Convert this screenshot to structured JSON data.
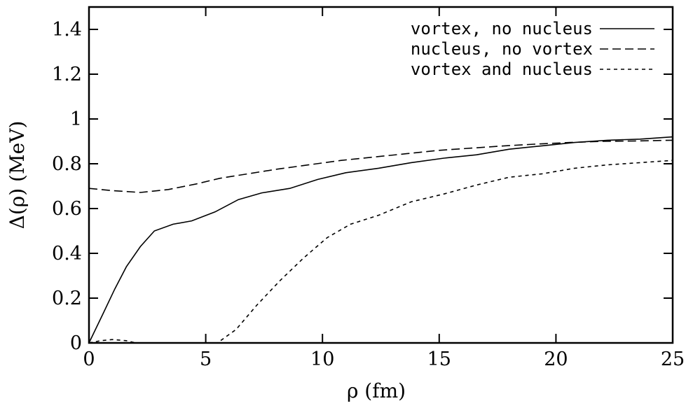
{
  "chart_data": {
    "type": "line",
    "xlabel": "ρ (fm)",
    "ylabel": "Δ(ρ) (MeV)",
    "xlim": [
      0,
      25
    ],
    "ylim": [
      0,
      1.5
    ],
    "x_ticks": [
      0,
      5,
      10,
      15,
      20,
      25
    ],
    "y_ticks": [
      0,
      0.2,
      0.4,
      0.6,
      0.8,
      1,
      1.2,
      1.4
    ],
    "x_tick_labels": [
      "0",
      "5",
      "10",
      "15",
      "20",
      "25"
    ],
    "y_tick_labels": [
      "0",
      "0.2",
      "0.4",
      "0.6",
      "0.8",
      "1",
      "1.2",
      "1.4"
    ],
    "grid": false,
    "legend_position": "top-right",
    "series": [
      {
        "name": "vortex, no nucleus",
        "style": "solid",
        "x": [
          0,
          0.6,
          1.1,
          1.6,
          2.2,
          2.8,
          3.6,
          4.4,
          5.4,
          6.4,
          7.4,
          8.6,
          9.8,
          11.0,
          12.4,
          13.8,
          15.2,
          16.6,
          18.0,
          19.4,
          20.8,
          22.2,
          23.6,
          25.0
        ],
        "y": [
          0.0,
          0.13,
          0.24,
          0.34,
          0.43,
          0.5,
          0.53,
          0.545,
          0.585,
          0.64,
          0.67,
          0.69,
          0.73,
          0.76,
          0.78,
          0.805,
          0.825,
          0.84,
          0.865,
          0.88,
          0.895,
          0.905,
          0.91,
          0.92
        ]
      },
      {
        "name": "nucleus, no vortex",
        "style": "dashed",
        "x": [
          0,
          1.0,
          2.2,
          3.4,
          4.6,
          5.6,
          6.8,
          8.0,
          9.4,
          10.8,
          12.2,
          13.6,
          15.0,
          16.4,
          17.8,
          19.2,
          20.6,
          22.0,
          23.4,
          25.0
        ],
        "y": [
          0.69,
          0.68,
          0.672,
          0.685,
          0.71,
          0.735,
          0.755,
          0.775,
          0.795,
          0.815,
          0.83,
          0.845,
          0.86,
          0.87,
          0.88,
          0.888,
          0.895,
          0.9,
          0.902,
          0.905
        ]
      },
      {
        "name": "vortex and nucleus",
        "style": "dotted",
        "x": [
          0,
          0.5,
          1.0,
          1.6,
          2.0,
          5.5,
          6.3,
          7.2,
          8.2,
          9.2,
          10.2,
          11.2,
          12.4,
          13.8,
          15.2,
          16.6,
          18.0,
          19.4,
          20.8,
          22.2,
          23.6,
          25.0
        ],
        "y": [
          0.0,
          0.01,
          0.015,
          0.01,
          0.0,
          0.0,
          0.06,
          0.17,
          0.28,
          0.38,
          0.47,
          0.53,
          0.57,
          0.63,
          0.665,
          0.705,
          0.74,
          0.755,
          0.78,
          0.795,
          0.805,
          0.815
        ]
      }
    ]
  }
}
